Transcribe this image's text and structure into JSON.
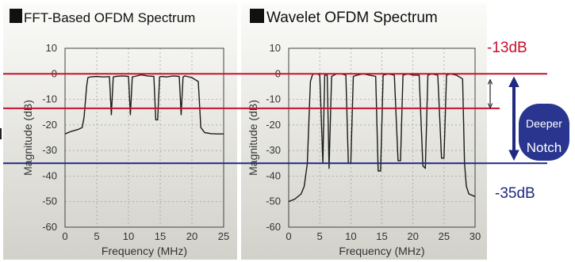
{
  "chart_data": [
    {
      "type": "line",
      "title": "FFT-Based OFDM Spectrum",
      "xlabel": "Frequency (MHz)",
      "ylabel": "Magnitude (dB)",
      "xlim": [
        0,
        25
      ],
      "ylim": [
        -60,
        10
      ],
      "xticks": [
        "0",
        "5",
        "10",
        "15",
        "20",
        "25"
      ],
      "yticks": [
        "10",
        "0",
        "-10",
        "-20",
        "-30",
        "-40",
        "-50",
        "-60"
      ],
      "grid": true,
      "series": [
        {
          "x": [
            0,
            1,
            2,
            2.7,
            3,
            3.4,
            3.6,
            4,
            5,
            6,
            7,
            7.3,
            7.6,
            7.8,
            8,
            9,
            10,
            10.3,
            10.6,
            11,
            12,
            13,
            14,
            14.3,
            14.6,
            14.9,
            15.2,
            16,
            17,
            18,
            18.3,
            18.6,
            18.9,
            19.2,
            20,
            21,
            21.4,
            21.7,
            22,
            23,
            24,
            25
          ],
          "y": [
            -23.5,
            -22.5,
            -21.8,
            -21,
            -17,
            -5,
            -1.5,
            -1.2,
            -1,
            -1.2,
            -1.1,
            -16,
            -1.2,
            -1.1,
            -1,
            -0.8,
            -1,
            -16,
            -1.2,
            -1,
            -0.4,
            -0.8,
            -1,
            -18,
            -18,
            -1.2,
            -1,
            -1.2,
            -0.8,
            -1,
            -16,
            -1.2,
            -0.8,
            -1,
            -1.5,
            -3,
            -21,
            -22,
            -23,
            -23.4,
            -23.5,
            -23.5
          ]
        }
      ]
    },
    {
      "type": "line",
      "title": "Wavelet OFDM Spectrum",
      "xlabel": "Frequency (MHz)",
      "ylabel": "Magnitude (dB)",
      "xlim": [
        0,
        30
      ],
      "ylim": [
        -60,
        10
      ],
      "xticks": [
        "0",
        "5",
        "10",
        "15",
        "20",
        "25",
        "30"
      ],
      "yticks": [
        "10",
        "0",
        "-10",
        "-20",
        "-30",
        "-40",
        "-50",
        "-60"
      ],
      "grid": true,
      "series": [
        {
          "x": [
            0,
            1,
            2,
            2.5,
            3,
            3.3,
            3.5,
            3.8,
            4,
            4.3,
            4.6,
            5,
            5.5,
            5.8,
            6.2,
            6.5,
            6.9,
            7.3,
            7.7,
            8.5,
            9.2,
            9.6,
            10,
            10.4,
            11,
            12,
            13,
            14,
            14.4,
            14.8,
            15.2,
            16,
            17,
            17.6,
            18,
            18.4,
            19.2,
            20,
            21,
            21.6,
            22,
            22.4,
            23,
            24,
            24.6,
            25,
            25.4,
            26,
            27,
            28,
            28.3,
            28.6,
            29,
            30
          ],
          "y": [
            -50,
            -49,
            -47,
            -44,
            -35,
            -15,
            -3,
            -0.5,
            0,
            0,
            0,
            -0.5,
            -35,
            -0.5,
            -0.5,
            -37,
            -1,
            -0.5,
            0,
            0,
            -0.5,
            -35,
            -35,
            -1,
            -0.5,
            0,
            -0.5,
            -1,
            -38,
            -38,
            -0.5,
            0,
            -0.5,
            -34,
            -34,
            -0.5,
            0,
            -0.5,
            -0.5,
            -36,
            -37,
            -0.5,
            0,
            -0.5,
            -33,
            -33,
            -0.5,
            0,
            -0.5,
            -2,
            -35,
            -44,
            -47,
            -48
          ]
        }
      ]
    }
  ],
  "annotations": {
    "level_13_label": "-13dB",
    "level_35_label": "-35dB",
    "notch_line1": "Deeper",
    "notch_line2": "Notch"
  },
  "colors": {
    "red_line": "#c8102e",
    "blue_line": "#1f2a80",
    "notch_bubble": "#2a3590",
    "panel_top": "#fafaf8",
    "panel_bottom": "#d4d3cc",
    "trace": "#1a1a1a"
  }
}
